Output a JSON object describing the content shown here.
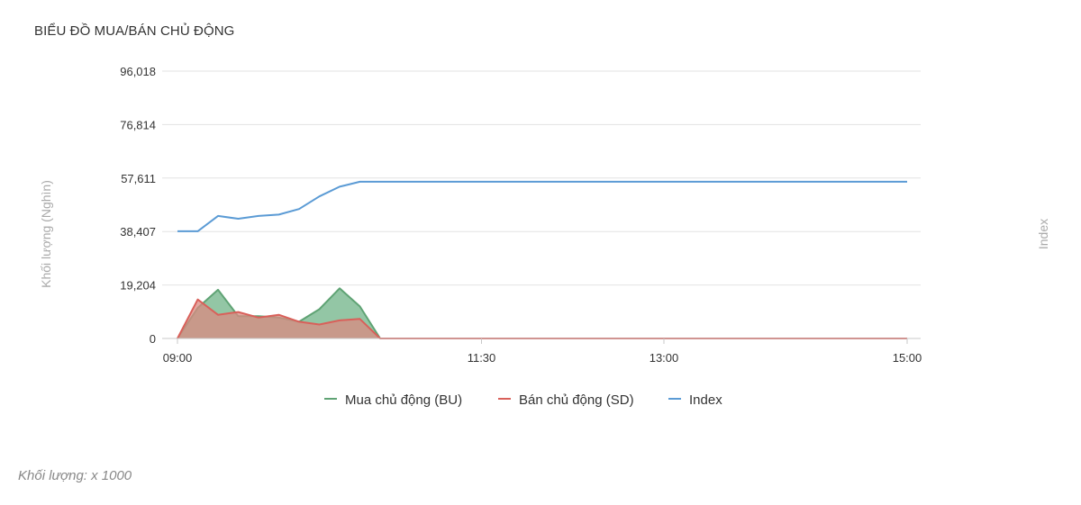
{
  "title": "BIỂU ĐỒ MUA/BÁN CHỦ ĐỘNG",
  "footnote": "Khối lượng: x 1000",
  "colors": {
    "bu_line": "#5fa374",
    "bu_fill": "#6fb387",
    "sd_line": "#d9605a",
    "sd_fill": "#d98a82",
    "index_line": "#5b9bd5",
    "grid": "#e3e3e3",
    "axis_text": "#333333",
    "axis_title": "#aaaaaa"
  },
  "chart_data": {
    "type": "area",
    "ylabel": "Khối lượng (Nghìn)",
    "y2label": "Index",
    "ylim": [
      0,
      96018
    ],
    "yticks": [
      0,
      19204,
      38407,
      57611,
      76814,
      96018
    ],
    "ytick_labels": [
      "0",
      "19,204",
      "38,407",
      "57,611",
      "76,814",
      "96,018"
    ],
    "xticks": [
      "09:00",
      "11:30",
      "13:00",
      "15:00"
    ],
    "xtick_minutes": [
      540,
      690,
      780,
      900
    ],
    "x": [
      540,
      550,
      560,
      570,
      580,
      590,
      600,
      610,
      620,
      630,
      640,
      650,
      660,
      670,
      680,
      690,
      700,
      710,
      720,
      730,
      740,
      750,
      760,
      770,
      780,
      790,
      800,
      810,
      820,
      830,
      840,
      850,
      860,
      870,
      880,
      890,
      900
    ],
    "grid": true,
    "legend_position": "bottom",
    "series": [
      {
        "name": "Mua chủ động (BU)",
        "kind": "area",
        "values": [
          0,
          11000,
          17500,
          8000,
          8000,
          7500,
          6000,
          10500,
          18000,
          11500,
          0,
          0,
          0,
          0,
          0,
          0,
          0,
          0,
          0,
          0,
          0,
          0,
          0,
          0,
          0,
          0,
          0,
          0,
          0,
          0,
          0,
          0,
          0,
          0,
          0,
          0,
          0
        ]
      },
      {
        "name": "Bán chủ động (SD)",
        "kind": "area",
        "values": [
          0,
          14000,
          8500,
          9500,
          7500,
          8500,
          6000,
          5000,
          6500,
          7000,
          0,
          0,
          0,
          0,
          0,
          0,
          0,
          0,
          0,
          0,
          0,
          0,
          0,
          0,
          0,
          0,
          0,
          0,
          0,
          0,
          0,
          0,
          0,
          0,
          0,
          0,
          0
        ]
      },
      {
        "name": "Index",
        "kind": "line",
        "values": [
          38500,
          38500,
          44000,
          43000,
          44000,
          44500,
          46500,
          51000,
          54500,
          56300,
          56300,
          56300,
          56300,
          56300,
          56300,
          56300,
          56300,
          56300,
          56300,
          56300,
          56300,
          56300,
          56300,
          56300,
          56300,
          56300,
          56300,
          56300,
          56300,
          56300,
          56300,
          56300,
          56300,
          56300,
          56300,
          56300,
          56300
        ]
      }
    ]
  }
}
